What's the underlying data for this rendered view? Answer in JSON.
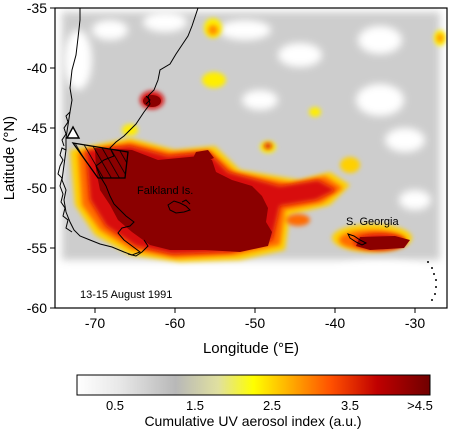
{
  "map": {
    "x_axis_label": "Longitude (°E)",
    "y_axis_label": "Latitude (°N)",
    "x_ticks": [
      "-70",
      "-60",
      "-50",
      "-40",
      "-30"
    ],
    "y_ticks": [
      "-35",
      "-40",
      "-45",
      "-50",
      "-55",
      "-60"
    ],
    "lon_range": [
      -75,
      -26
    ],
    "lat_range": [
      -60,
      -35
    ],
    "date_label": "13-15 August 1991",
    "labels": {
      "falkland": "Falkland Is.",
      "georgia": "S. Georgia"
    }
  },
  "colorbar": {
    "title": "Cumulative UV aerosol index (a.u.)",
    "ticks": [
      "0.5",
      "1.5",
      "2.5",
      "3.5",
      ">4.5"
    ],
    "colors": [
      "#ffffff",
      "#d8d8d8",
      "#b0b0b0",
      "#e8e8b0",
      "#ffff00",
      "#ffc000",
      "#ff6000",
      "#e02000",
      "#b00000",
      "#8b0000"
    ]
  },
  "colors": {
    "plume_dark": "#8b0000",
    "plume_red": "#d01010",
    "plume_orange": "#ff8000",
    "plume_yellow": "#ffee00",
    "background_gray": "#c8c8c8"
  }
}
